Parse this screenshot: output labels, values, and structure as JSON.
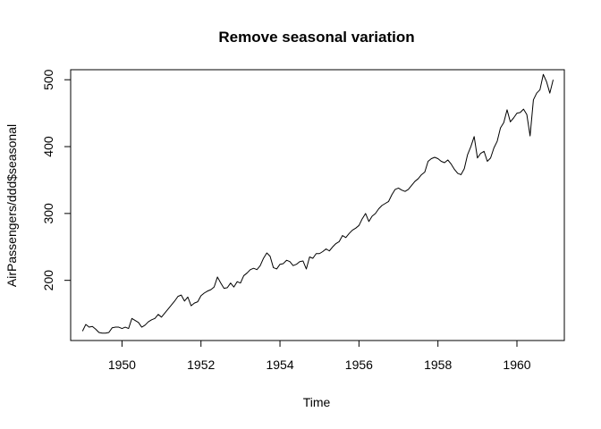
{
  "chart_data": {
    "type": "line",
    "title": "Remove seasonal variation",
    "xlabel": "Time",
    "ylabel": "AirPassengers/ddd$seasonal",
    "xlim": [
      1948.7,
      1961.2
    ],
    "ylim": [
      110,
      515
    ],
    "x_ticks": [
      1950,
      1952,
      1954,
      1956,
      1958,
      1960
    ],
    "y_ticks": [
      200,
      300,
      400,
      500
    ],
    "grid": false,
    "legend": "none",
    "line_color": "#000000",
    "series": [
      {
        "x": [
          1949.0,
          1949.083,
          1949.167,
          1949.25,
          1949.333,
          1949.417,
          1949.5,
          1949.583,
          1949.667,
          1949.75,
          1949.833,
          1949.917,
          1950.0,
          1950.083,
          1950.167,
          1950.25,
          1950.333,
          1950.417,
          1950.5,
          1950.583,
          1950.667,
          1950.75,
          1950.833,
          1950.917,
          1951.0,
          1951.083,
          1951.167,
          1951.25,
          1951.333,
          1951.417,
          1951.5,
          1951.583,
          1951.667,
          1951.75,
          1951.833,
          1951.917,
          1952.0,
          1952.083,
          1952.167,
          1952.25,
          1952.333,
          1952.417,
          1952.5,
          1952.583,
          1952.667,
          1952.75,
          1952.833,
          1952.917,
          1953.0,
          1953.083,
          1953.167,
          1953.25,
          1953.333,
          1953.417,
          1953.5,
          1953.583,
          1953.667,
          1953.75,
          1953.833,
          1953.917,
          1954.0,
          1954.083,
          1954.167,
          1954.25,
          1954.333,
          1954.417,
          1954.5,
          1954.583,
          1954.667,
          1954.75,
          1954.833,
          1954.917,
          1955.0,
          1955.083,
          1955.167,
          1955.25,
          1955.333,
          1955.417,
          1955.5,
          1955.583,
          1955.667,
          1955.75,
          1955.833,
          1955.917,
          1956.0,
          1956.083,
          1956.167,
          1956.25,
          1956.333,
          1956.417,
          1956.5,
          1956.583,
          1956.667,
          1956.75,
          1956.833,
          1956.917,
          1957.0,
          1957.083,
          1957.167,
          1957.25,
          1957.333,
          1957.417,
          1957.5,
          1957.583,
          1957.667,
          1957.75,
          1957.833,
          1957.917,
          1958.0,
          1958.083,
          1958.167,
          1958.25,
          1958.333,
          1958.417,
          1958.5,
          1958.583,
          1958.667,
          1958.75,
          1958.833,
          1958.917,
          1959.0,
          1959.083,
          1959.167,
          1959.25,
          1959.333,
          1959.417,
          1959.5,
          1959.583,
          1959.667,
          1959.75,
          1959.833,
          1959.917,
          1960.0,
          1960.083,
          1960.167,
          1960.25,
          1960.333,
          1960.417,
          1960.5,
          1960.583,
          1960.667,
          1960.75,
          1960.833,
          1960.917
        ],
        "y": [
          124,
          134,
          130,
          131,
          127,
          122,
          121,
          121,
          122,
          129,
          130,
          130,
          128,
          130,
          128,
          143,
          140,
          137,
          130,
          133,
          138,
          141,
          143,
          149,
          145,
          151,
          157,
          163,
          169,
          176,
          178,
          169,
          175,
          162,
          166,
          168,
          177,
          181,
          184,
          186,
          190,
          205,
          196,
          188,
          189,
          196,
          190,
          198,
          196,
          207,
          211,
          216,
          218,
          216,
          222,
          233,
          241,
          236,
          219,
          217,
          224,
          225,
          230,
          228,
          222,
          224,
          228,
          229,
          217,
          235,
          233,
          240,
          240,
          243,
          247,
          244,
          250,
          255,
          258,
          267,
          264,
          270,
          275,
          278,
          282,
          292,
          300,
          288,
          296,
          300,
          307,
          312,
          315,
          318,
          328,
          336,
          338,
          335,
          333,
          336,
          342,
          348,
          352,
          358,
          362,
          378,
          382,
          384,
          382,
          378,
          376,
          380,
          374,
          366,
          360,
          358,
          367,
          388,
          400,
          415,
          383,
          390,
          393,
          378,
          383,
          398,
          408,
          428,
          436,
          455,
          437,
          443,
          450,
          451,
          456,
          448,
          416,
          470,
          480,
          485,
          508,
          497,
          480,
          500
        ]
      }
    ]
  }
}
